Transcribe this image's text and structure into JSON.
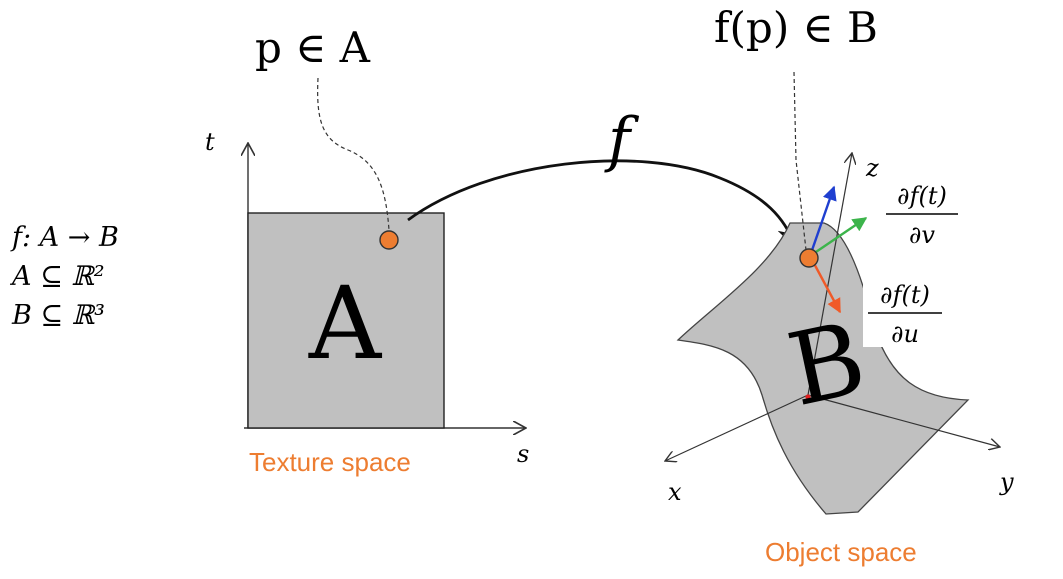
{
  "colors": {
    "accent_orange": "#ED7D31",
    "fill_gray": "#C0C0C0",
    "tangent_blue": "#1F3FD0",
    "tangent_green": "#3CB44B",
    "tangent_red": "#F05A28",
    "stroke_dark": "#333333",
    "text_black": "#000000"
  },
  "definitions": {
    "line1": "f: A → B",
    "line2": "A ⊆ ℝ²",
    "line3": "B ⊆ ℝ³"
  },
  "texture": {
    "point_label": "p ∈ A",
    "region_label": "A",
    "axis_t": "t",
    "axis_s": "s",
    "caption": "Texture space"
  },
  "mapping": {
    "label": "f"
  },
  "object": {
    "point_label": "f(p) ∈ B",
    "region_label": "B",
    "axis_x": "x",
    "axis_y": "y",
    "axis_z": "z",
    "caption": "Object space",
    "partial_v_numerator": "∂f(t)",
    "partial_v_denominator": "∂v",
    "partial_u_numerator": "∂f(t)",
    "partial_u_denominator": "∂u"
  }
}
